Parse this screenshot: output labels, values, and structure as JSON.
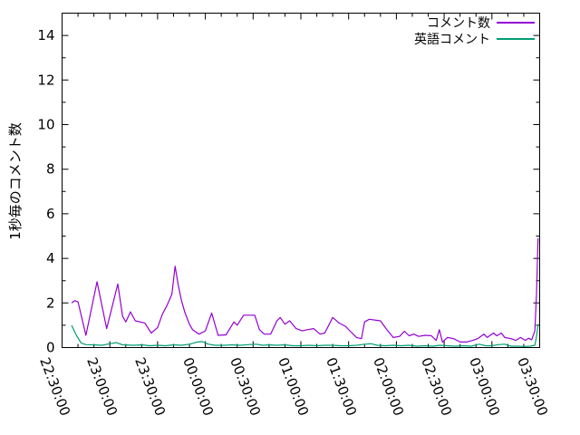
{
  "figure": {
    "background_color": "#ffffff",
    "axis_color": "#000000"
  },
  "chart_data": {
    "type": "line",
    "title": "",
    "xlabel": "",
    "ylabel": "1秒毎のコメント数",
    "ylim": [
      0,
      15
    ],
    "ytick_labels": [
      "0",
      "2",
      "4",
      "6",
      "8",
      "10",
      "12",
      "14"
    ],
    "ytick_values": [
      0,
      2,
      4,
      6,
      8,
      10,
      12,
      14
    ],
    "y_minor_interval": 1,
    "xtick_labels": [
      "22:30:00",
      "23:00:00",
      "23:30:00",
      "00:00:00",
      "00:30:00",
      "01:00:00",
      "01:30:00",
      "02:00:00",
      "02:30:00",
      "03:00:00",
      "03:30:00"
    ],
    "x_major_interval_min": 30,
    "x_minor_interval_min": 10,
    "x_range": [
      "22:30",
      "03:30"
    ],
    "grid": false,
    "legend_position": "top-right-inside",
    "series": [
      {
        "name": "コメント数",
        "color": "#9400d3",
        "points": [
          [
            "22:36",
            2.0
          ],
          [
            "22:38",
            2.1
          ],
          [
            "22:40",
            2.05
          ],
          [
            "22:45",
            0.55
          ],
          [
            "22:52",
            2.95
          ],
          [
            "22:58",
            0.85
          ],
          [
            "23:05",
            2.85
          ],
          [
            "23:08",
            1.4
          ],
          [
            "23:10",
            1.15
          ],
          [
            "23:13",
            1.6
          ],
          [
            "23:16",
            1.2
          ],
          [
            "23:22",
            1.1
          ],
          [
            "23:26",
            0.65
          ],
          [
            "23:30",
            0.9
          ],
          [
            "23:33",
            1.5
          ],
          [
            "23:36",
            1.9
          ],
          [
            "23:39",
            2.4
          ],
          [
            "23:41",
            3.65
          ],
          [
            "23:43",
            2.8
          ],
          [
            "23:45",
            2.1
          ],
          [
            "23:47",
            1.6
          ],
          [
            "23:50",
            1.05
          ],
          [
            "23:52",
            0.8
          ],
          [
            "23:56",
            0.6
          ],
          [
            "00:00",
            0.75
          ],
          [
            "00:04",
            1.55
          ],
          [
            "00:08",
            0.55
          ],
          [
            "00:13",
            0.57
          ],
          [
            "00:18",
            1.15
          ],
          [
            "00:20",
            1.0
          ],
          [
            "00:24",
            1.45
          ],
          [
            "00:31",
            1.45
          ],
          [
            "00:34",
            0.8
          ],
          [
            "00:37",
            0.6
          ],
          [
            "00:41",
            0.6
          ],
          [
            "00:45",
            1.2
          ],
          [
            "00:47",
            1.35
          ],
          [
            "00:50",
            1.05
          ],
          [
            "00:53",
            1.2
          ],
          [
            "00:57",
            0.85
          ],
          [
            "01:01",
            0.75
          ],
          [
            "01:04",
            0.8
          ],
          [
            "01:08",
            0.85
          ],
          [
            "01:12",
            0.6
          ],
          [
            "01:15",
            0.65
          ],
          [
            "01:20",
            1.35
          ],
          [
            "01:24",
            1.1
          ],
          [
            "01:28",
            0.95
          ],
          [
            "01:31",
            0.73
          ],
          [
            "01:35",
            0.45
          ],
          [
            "01:38",
            0.4
          ],
          [
            "01:40",
            1.15
          ],
          [
            "01:43",
            1.27
          ],
          [
            "01:50",
            1.2
          ],
          [
            "01:52",
            1.0
          ],
          [
            "01:54",
            0.8
          ],
          [
            "01:58",
            0.45
          ],
          [
            "02:02",
            0.5
          ],
          [
            "02:05",
            0.73
          ],
          [
            "02:08",
            0.53
          ],
          [
            "02:11",
            0.6
          ],
          [
            "02:14",
            0.5
          ],
          [
            "02:18",
            0.55
          ],
          [
            "02:22",
            0.53
          ],
          [
            "02:25",
            0.32
          ],
          [
            "02:27",
            0.8
          ],
          [
            "02:29",
            0.24
          ],
          [
            "02:32",
            0.45
          ],
          [
            "02:36",
            0.4
          ],
          [
            "02:40",
            0.25
          ],
          [
            "02:44",
            0.25
          ],
          [
            "02:48",
            0.32
          ],
          [
            "02:51",
            0.4
          ],
          [
            "02:55",
            0.6
          ],
          [
            "02:57",
            0.45
          ],
          [
            "03:01",
            0.65
          ],
          [
            "03:03",
            0.53
          ],
          [
            "03:06",
            0.65
          ],
          [
            "03:08",
            0.45
          ],
          [
            "03:12",
            0.4
          ],
          [
            "03:15",
            0.32
          ],
          [
            "03:18",
            0.45
          ],
          [
            "03:21",
            0.32
          ],
          [
            "03:23",
            0.42
          ],
          [
            "03:25",
            0.35
          ],
          [
            "03:27",
            0.75
          ],
          [
            "03:28",
            2.4
          ],
          [
            "03:29",
            4.9
          ]
        ]
      },
      {
        "name": "英語コメント",
        "color": "#009e73",
        "points": [
          [
            "22:36",
            1.0
          ],
          [
            "22:39",
            0.55
          ],
          [
            "22:42",
            0.2
          ],
          [
            "22:45",
            0.13
          ],
          [
            "22:50",
            0.12
          ],
          [
            "22:55",
            0.1
          ],
          [
            "23:00",
            0.17
          ],
          [
            "23:04",
            0.22
          ],
          [
            "23:08",
            0.12
          ],
          [
            "23:15",
            0.1
          ],
          [
            "23:20",
            0.12
          ],
          [
            "23:25",
            0.08
          ],
          [
            "23:30",
            0.1
          ],
          [
            "23:35",
            0.08
          ],
          [
            "23:40",
            0.12
          ],
          [
            "23:45",
            0.1
          ],
          [
            "23:50",
            0.15
          ],
          [
            "23:55",
            0.25
          ],
          [
            "23:58",
            0.27
          ],
          [
            "00:02",
            0.15
          ],
          [
            "00:06",
            0.1
          ],
          [
            "00:12",
            0.1
          ],
          [
            "00:17",
            0.12
          ],
          [
            "00:22",
            0.1
          ],
          [
            "00:27",
            0.13
          ],
          [
            "00:32",
            0.15
          ],
          [
            "00:36",
            0.1
          ],
          [
            "00:40",
            0.12
          ],
          [
            "00:45",
            0.1
          ],
          [
            "00:50",
            0.12
          ],
          [
            "00:55",
            0.08
          ],
          [
            "01:00",
            0.08
          ],
          [
            "01:05",
            0.1
          ],
          [
            "01:10",
            0.08
          ],
          [
            "01:15",
            0.1
          ],
          [
            "01:20",
            0.1
          ],
          [
            "01:25",
            0.08
          ],
          [
            "01:30",
            0.08
          ],
          [
            "01:35",
            0.1
          ],
          [
            "01:40",
            0.15
          ],
          [
            "01:44",
            0.17
          ],
          [
            "01:48",
            0.1
          ],
          [
            "01:53",
            0.08
          ],
          [
            "01:58",
            0.1
          ],
          [
            "02:03",
            0.08
          ],
          [
            "02:08",
            0.1
          ],
          [
            "02:13",
            0.06
          ],
          [
            "02:18",
            0.08
          ],
          [
            "02:23",
            0.06
          ],
          [
            "02:27",
            0.1
          ],
          [
            "02:32",
            0.08
          ],
          [
            "02:37",
            0.06
          ],
          [
            "02:42",
            0.08
          ],
          [
            "02:47",
            0.06
          ],
          [
            "02:52",
            0.15
          ],
          [
            "02:56",
            0.08
          ],
          [
            "03:00",
            0.08
          ],
          [
            "03:04",
            0.13
          ],
          [
            "03:08",
            0.15
          ],
          [
            "03:12",
            0.06
          ],
          [
            "03:16",
            0.06
          ],
          [
            "03:20",
            0.05
          ],
          [
            "03:24",
            0.06
          ],
          [
            "03:27",
            0.1
          ],
          [
            "03:28",
            0.5
          ],
          [
            "03:29",
            1.05
          ]
        ]
      }
    ]
  }
}
